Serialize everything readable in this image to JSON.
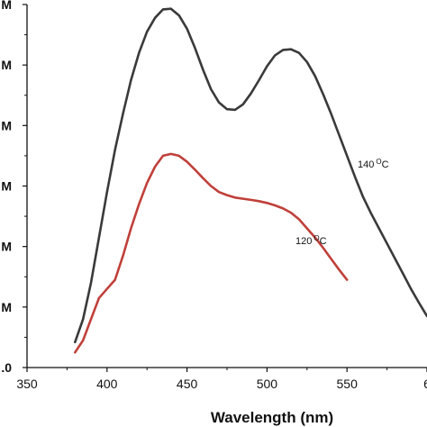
{
  "chart_data": {
    "type": "line",
    "title": "",
    "xlabel": "Wavelength (nm)",
    "ylabel": "",
    "xlim": [
      350,
      600
    ],
    "ylim": [
      0,
      6
    ],
    "x_ticks": [
      "350",
      "400",
      "450",
      "500",
      "550",
      "6"
    ],
    "y_ticks": [
      ".0",
      "M",
      "M",
      "M",
      "M",
      "M",
      "M"
    ],
    "grid": false,
    "series": [
      {
        "name": "140 °C",
        "color": "#3a3a3a",
        "x": [
          380,
          385,
          390,
          395,
          400,
          405,
          410,
          415,
          420,
          425,
          430,
          435,
          440,
          445,
          450,
          455,
          460,
          465,
          470,
          475,
          480,
          485,
          490,
          495,
          500,
          505,
          510,
          515,
          520,
          525,
          530,
          535,
          540,
          545,
          550,
          555,
          560,
          565,
          570,
          575,
          580,
          585,
          590,
          595,
          600
        ],
        "y": [
          0.42,
          0.8,
          1.4,
          2.15,
          2.9,
          3.6,
          4.2,
          4.75,
          5.2,
          5.55,
          5.78,
          5.92,
          5.93,
          5.82,
          5.6,
          5.28,
          4.92,
          4.6,
          4.38,
          4.27,
          4.26,
          4.35,
          4.53,
          4.75,
          4.98,
          5.16,
          5.25,
          5.26,
          5.2,
          5.05,
          4.82,
          4.52,
          4.2,
          3.85,
          3.5,
          3.15,
          2.82,
          2.55,
          2.3,
          2.05,
          1.8,
          1.55,
          1.3,
          1.07,
          0.85
        ]
      },
      {
        "name": "120 °C",
        "color": "#c0403a",
        "x": [
          380,
          385,
          390,
          395,
          400,
          405,
          410,
          415,
          420,
          425,
          430,
          435,
          440,
          445,
          450,
          455,
          460,
          465,
          470,
          475,
          480,
          485,
          490,
          495,
          500,
          505,
          510,
          515,
          520,
          525,
          530,
          535,
          540,
          545,
          550
        ],
        "y": [
          0.25,
          0.45,
          0.8,
          1.15,
          1.3,
          1.45,
          1.85,
          2.3,
          2.7,
          3.05,
          3.32,
          3.5,
          3.53,
          3.5,
          3.4,
          3.27,
          3.13,
          3.0,
          2.9,
          2.85,
          2.81,
          2.79,
          2.77,
          2.75,
          2.72,
          2.68,
          2.63,
          2.56,
          2.45,
          2.3,
          2.15,
          1.98,
          1.8,
          1.62,
          1.45
        ]
      }
    ],
    "annotations": [
      {
        "text": "140",
        "sup": "O",
        "suffix": "C",
        "series": "140 °C"
      },
      {
        "text": "120",
        "sup": "O",
        "suffix": "C",
        "series": "120 °C"
      }
    ]
  }
}
